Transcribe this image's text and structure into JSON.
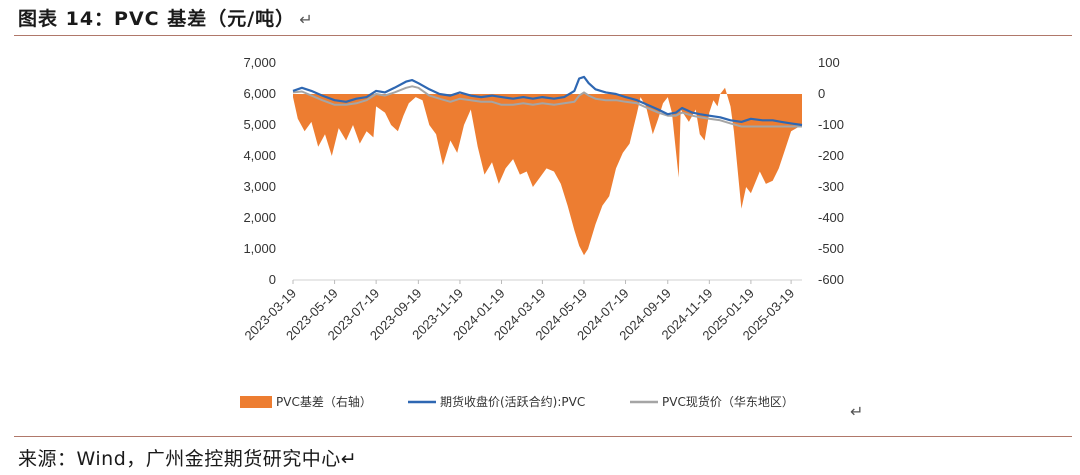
{
  "title": {
    "text": "图表 14：PVC 基差（元/吨）",
    "mark": "↵"
  },
  "source": {
    "text": "来源：Wind，广州金控期货研究中心↵"
  },
  "corner_mark": "↵",
  "colors": {
    "basis": "#ED7D31",
    "futures": "#2E67B2",
    "spot": "#A5A5A5"
  },
  "chart_data": {
    "type": "area+line",
    "title": "PVC 基差（元/吨）",
    "x_ticks": [
      "2023-03-19",
      "2023-05-19",
      "2023-07-19",
      "2023-09-19",
      "2023-11-19",
      "2024-01-19",
      "2024-03-19",
      "2024-05-19",
      "2024-07-19",
      "2024-09-19",
      "2024-11-19",
      "2025-01-19",
      "2025-03-19"
    ],
    "x_range": [
      "2023-03-19",
      "2025-04-04"
    ],
    "left_axis": {
      "ylim": [
        0,
        7000
      ],
      "ticks": [
        0,
        1000,
        2000,
        3000,
        4000,
        5000,
        6000,
        7000
      ],
      "tick_labels": [
        "0",
        "1,000",
        "2,000",
        "3,000",
        "4,000",
        "5,000",
        "6,000",
        "7,000"
      ]
    },
    "right_axis": {
      "ylim": [
        -600,
        100
      ],
      "ticks": [
        -600,
        -500,
        -400,
        -300,
        -200,
        -100,
        0,
        100
      ],
      "tick_labels": [
        "-600",
        "-500",
        "-400",
        "-300",
        "-200",
        "-100",
        "0",
        "100"
      ]
    },
    "series": [
      {
        "name": "PVC基差（右轴）",
        "kind": "area",
        "axis": "right",
        "points": [
          [
            "2023-03-19",
            -10
          ],
          [
            "2023-03-26",
            -80
          ],
          [
            "2023-04-05",
            -120
          ],
          [
            "2023-04-15",
            -90
          ],
          [
            "2023-04-25",
            -170
          ],
          [
            "2023-05-05",
            -130
          ],
          [
            "2023-05-15",
            -200
          ],
          [
            "2023-05-25",
            -110
          ],
          [
            "2023-06-05",
            -150
          ],
          [
            "2023-06-15",
            -100
          ],
          [
            "2023-06-25",
            -160
          ],
          [
            "2023-07-05",
            -120
          ],
          [
            "2023-07-15",
            -140
          ],
          [
            "2023-07-19",
            -40
          ],
          [
            "2023-08-01",
            -60
          ],
          [
            "2023-08-10",
            -100
          ],
          [
            "2023-08-20",
            -120
          ],
          [
            "2023-08-28",
            -70
          ],
          [
            "2023-09-05",
            -30
          ],
          [
            "2023-09-15",
            -10
          ],
          [
            "2023-09-25",
            -20
          ],
          [
            "2023-10-05",
            -100
          ],
          [
            "2023-10-15",
            -130
          ],
          [
            "2023-10-25",
            -230
          ],
          [
            "2023-11-05",
            -150
          ],
          [
            "2023-11-15",
            -190
          ],
          [
            "2023-11-25",
            -100
          ],
          [
            "2023-12-05",
            -50
          ],
          [
            "2023-12-15",
            -170
          ],
          [
            "2023-12-25",
            -260
          ],
          [
            "2024-01-05",
            -220
          ],
          [
            "2024-01-15",
            -290
          ],
          [
            "2024-01-25",
            -240
          ],
          [
            "2024-02-05",
            -210
          ],
          [
            "2024-02-15",
            -260
          ],
          [
            "2024-02-25",
            -250
          ],
          [
            "2024-03-05",
            -300
          ],
          [
            "2024-03-15",
            -270
          ],
          [
            "2024-03-25",
            -240
          ],
          [
            "2024-04-05",
            -250
          ],
          [
            "2024-04-15",
            -290
          ],
          [
            "2024-04-25",
            -360
          ],
          [
            "2024-05-05",
            -440
          ],
          [
            "2024-05-12",
            -490
          ],
          [
            "2024-05-19",
            -520
          ],
          [
            "2024-05-25",
            -500
          ],
          [
            "2024-06-05",
            -420
          ],
          [
            "2024-06-15",
            -360
          ],
          [
            "2024-06-25",
            -330
          ],
          [
            "2024-07-05",
            -240
          ],
          [
            "2024-07-15",
            -190
          ],
          [
            "2024-07-25",
            -160
          ],
          [
            "2024-08-05",
            -60
          ],
          [
            "2024-08-10",
            -10
          ],
          [
            "2024-08-18",
            -40
          ],
          [
            "2024-08-28",
            -130
          ],
          [
            "2024-09-05",
            -80
          ],
          [
            "2024-09-12",
            -30
          ],
          [
            "2024-09-19",
            -10
          ],
          [
            "2024-09-25",
            -60
          ],
          [
            "2024-10-05",
            -270
          ],
          [
            "2024-10-08",
            -50
          ],
          [
            "2024-10-20",
            -90
          ],
          [
            "2024-10-30",
            -50
          ],
          [
            "2024-11-05",
            -130
          ],
          [
            "2024-11-12",
            -150
          ],
          [
            "2024-11-19",
            -60
          ],
          [
            "2024-11-25",
            -20
          ],
          [
            "2024-12-01",
            -40
          ],
          [
            "2024-12-05",
            0
          ],
          [
            "2024-12-12",
            20
          ],
          [
            "2024-12-20",
            -40
          ],
          [
            "2024-12-25",
            -120
          ],
          [
            "2025-01-05",
            -370
          ],
          [
            "2025-01-12",
            -300
          ],
          [
            "2025-01-19",
            -320
          ],
          [
            "2025-02-01",
            -250
          ],
          [
            "2025-02-10",
            -290
          ],
          [
            "2025-02-20",
            -280
          ],
          [
            "2025-03-01",
            -240
          ],
          [
            "2025-03-10",
            -180
          ],
          [
            "2025-03-19",
            -120
          ],
          [
            "2025-04-04",
            -100
          ]
        ]
      },
      {
        "name": "期货收盘价(活跃合约):PVC",
        "kind": "line",
        "axis": "left",
        "points": [
          [
            "2023-03-19",
            6100
          ],
          [
            "2023-04-01",
            6200
          ],
          [
            "2023-04-15",
            6100
          ],
          [
            "2023-05-01",
            5950
          ],
          [
            "2023-05-19",
            5800
          ],
          [
            "2023-06-05",
            5750
          ],
          [
            "2023-06-20",
            5850
          ],
          [
            "2023-07-05",
            5900
          ],
          [
            "2023-07-19",
            6100
          ],
          [
            "2023-08-01",
            6050
          ],
          [
            "2023-08-15",
            6200
          ],
          [
            "2023-09-01",
            6400
          ],
          [
            "2023-09-10",
            6450
          ],
          [
            "2023-09-19",
            6350
          ],
          [
            "2023-10-05",
            6150
          ],
          [
            "2023-10-20",
            6000
          ],
          [
            "2023-11-05",
            5950
          ],
          [
            "2023-11-19",
            6050
          ],
          [
            "2023-12-05",
            5950
          ],
          [
            "2023-12-20",
            5900
          ],
          [
            "2024-01-05",
            5950
          ],
          [
            "2024-01-19",
            5900
          ],
          [
            "2024-02-05",
            5850
          ],
          [
            "2024-02-20",
            5900
          ],
          [
            "2024-03-05",
            5850
          ],
          [
            "2024-03-19",
            5900
          ],
          [
            "2024-04-05",
            5850
          ],
          [
            "2024-04-20",
            5900
          ],
          [
            "2024-05-05",
            6100
          ],
          [
            "2024-05-12",
            6500
          ],
          [
            "2024-05-19",
            6550
          ],
          [
            "2024-05-26",
            6350
          ],
          [
            "2024-06-05",
            6150
          ],
          [
            "2024-06-20",
            6050
          ],
          [
            "2024-07-05",
            6000
          ],
          [
            "2024-07-19",
            5900
          ],
          [
            "2024-08-05",
            5800
          ],
          [
            "2024-08-20",
            5650
          ],
          [
            "2024-09-05",
            5500
          ],
          [
            "2024-09-19",
            5350
          ],
          [
            "2024-10-01",
            5400
          ],
          [
            "2024-10-10",
            5550
          ],
          [
            "2024-10-25",
            5400
          ],
          [
            "2024-11-05",
            5350
          ],
          [
            "2024-11-19",
            5300
          ],
          [
            "2024-12-05",
            5250
          ],
          [
            "2024-12-20",
            5150
          ],
          [
            "2025-01-05",
            5100
          ],
          [
            "2025-01-19",
            5200
          ],
          [
            "2025-02-05",
            5150
          ],
          [
            "2025-02-20",
            5150
          ],
          [
            "2025-03-05",
            5100
          ],
          [
            "2025-03-19",
            5050
          ],
          [
            "2025-04-04",
            5000
          ]
        ]
      },
      {
        "name": "PVC现货价（华东地区）",
        "kind": "line",
        "axis": "left",
        "points": [
          [
            "2023-03-19",
            6050
          ],
          [
            "2023-04-01",
            6080
          ],
          [
            "2023-04-15",
            5950
          ],
          [
            "2023-05-01",
            5800
          ],
          [
            "2023-05-19",
            5650
          ],
          [
            "2023-06-05",
            5650
          ],
          [
            "2023-06-20",
            5700
          ],
          [
            "2023-07-05",
            5800
          ],
          [
            "2023-07-19",
            6000
          ],
          [
            "2023-08-01",
            5950
          ],
          [
            "2023-08-15",
            6050
          ],
          [
            "2023-09-01",
            6200
          ],
          [
            "2023-09-10",
            6250
          ],
          [
            "2023-09-19",
            6200
          ],
          [
            "2023-10-05",
            5950
          ],
          [
            "2023-10-20",
            5850
          ],
          [
            "2023-11-05",
            5750
          ],
          [
            "2023-11-19",
            5850
          ],
          [
            "2023-12-05",
            5800
          ],
          [
            "2023-12-20",
            5750
          ],
          [
            "2024-01-05",
            5750
          ],
          [
            "2024-01-19",
            5650
          ],
          [
            "2024-02-05",
            5650
          ],
          [
            "2024-02-20",
            5700
          ],
          [
            "2024-03-05",
            5650
          ],
          [
            "2024-03-19",
            5700
          ],
          [
            "2024-04-05",
            5650
          ],
          [
            "2024-04-20",
            5700
          ],
          [
            "2024-05-05",
            5750
          ],
          [
            "2024-05-12",
            5950
          ],
          [
            "2024-05-19",
            6050
          ],
          [
            "2024-05-26",
            5950
          ],
          [
            "2024-06-05",
            5850
          ],
          [
            "2024-06-20",
            5800
          ],
          [
            "2024-07-05",
            5800
          ],
          [
            "2024-07-19",
            5750
          ],
          [
            "2024-08-05",
            5700
          ],
          [
            "2024-08-20",
            5550
          ],
          [
            "2024-09-05",
            5400
          ],
          [
            "2024-09-19",
            5300
          ],
          [
            "2024-10-01",
            5300
          ],
          [
            "2024-10-10",
            5400
          ],
          [
            "2024-10-25",
            5300
          ],
          [
            "2024-11-05",
            5250
          ],
          [
            "2024-11-19",
            5200
          ],
          [
            "2024-12-05",
            5150
          ],
          [
            "2024-12-20",
            5050
          ],
          [
            "2025-01-05",
            4950
          ],
          [
            "2025-01-19",
            4950
          ],
          [
            "2025-02-05",
            4950
          ],
          [
            "2025-02-20",
            4950
          ],
          [
            "2025-03-05",
            4950
          ],
          [
            "2025-03-19",
            4950
          ],
          [
            "2025-04-04",
            4950
          ]
        ]
      }
    ],
    "legend": [
      "PVC基差（右轴）",
      "期货收盘价(活跃合约):PVC",
      "PVC现货价（华东地区）"
    ],
    "legend_position": "bottom",
    "grid": false
  }
}
